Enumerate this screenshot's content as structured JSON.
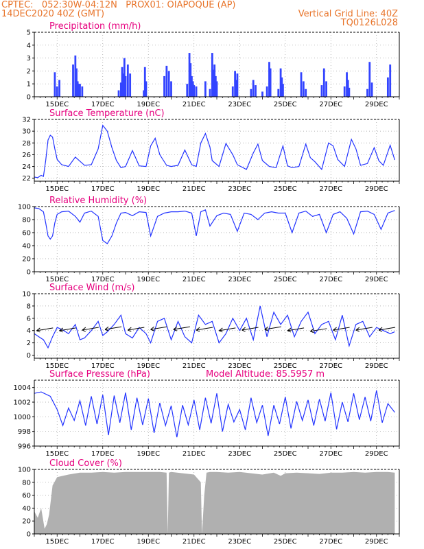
{
  "header": {
    "line1": "CPTEC:   052:30W-04:12N   PROX01: OIAPOQUE (AP)",
    "line2_left": "14DEC2020 40Z (GMT)",
    "line2_right": "Vertical Grid Line: 40Z",
    "line3_right": "TQ0126L028"
  },
  "colors": {
    "header": "#e8742a",
    "title": "#e6007e",
    "line": "#2233ff",
    "bar": "#3344ff",
    "cloud": "#b0b0b0"
  },
  "x_axis": {
    "day_labels": [
      "15DEC",
      "17DEC",
      "19DEC",
      "21DEC",
      "23DEC",
      "25DEC",
      "27DEC",
      "29DEC"
    ]
  },
  "chart_data": [
    {
      "type": "bar",
      "title": "Precipitation (mm/h)",
      "ylim": [
        0,
        5
      ],
      "yticks": [
        0,
        1,
        2,
        3,
        4,
        5
      ],
      "x_days": [
        0.9,
        1.0,
        1.1,
        1.7,
        1.8,
        1.85,
        1.9,
        1.95,
        2.0,
        2.1,
        3.7,
        3.8,
        3.85,
        3.9,
        3.95,
        4.0,
        4.1,
        4.2,
        4.8,
        4.85,
        4.9,
        5.7,
        5.8,
        5.9,
        6.0,
        6.7,
        6.8,
        6.85,
        6.9,
        6.95,
        7.0,
        7.1,
        7.5,
        7.7,
        7.8,
        7.85,
        7.9,
        7.95,
        8.0,
        8.7,
        8.8,
        8.85,
        8.9,
        9.5,
        9.6,
        9.7,
        10.0,
        10.2,
        10.3,
        10.35,
        10.7,
        10.8,
        10.85,
        10.9,
        11.7,
        11.8,
        11.9,
        12.6,
        12.7,
        12.8,
        13.6,
        13.7,
        13.75,
        13.8,
        14.6,
        14.7,
        14.8,
        15.5,
        15.6
      ],
      "values": [
        1.9,
        0.8,
        1.3,
        2.5,
        3.2,
        2.2,
        1.2,
        1.0,
        1.0,
        0.8,
        0.5,
        1.1,
        2.3,
        1.8,
        3.0,
        1.6,
        2.5,
        1.8,
        0.5,
        2.3,
        1.2,
        1.6,
        2.4,
        2.0,
        1.2,
        1.0,
        3.4,
        2.6,
        1.6,
        1.2,
        0.9,
        0.8,
        1.2,
        0.6,
        3.4,
        2.1,
        2.5,
        1.6,
        1.2,
        0.8,
        2.0,
        1.3,
        1.8,
        0.6,
        1.3,
        0.9,
        0.4,
        0.8,
        2.7,
        2.2,
        0.6,
        2.2,
        1.5,
        1.0,
        1.9,
        1.2,
        0.6,
        0.9,
        2.2,
        1.2,
        0.8,
        1.9,
        1.3,
        0.7,
        0.6,
        2.7,
        1.1,
        1.5,
        2.5
      ]
    },
    {
      "type": "line",
      "title": "Surface Temperature (nC)",
      "ylim": [
        21.5,
        32
      ],
      "yticks": [
        22,
        24,
        26,
        28,
        30,
        32
      ],
      "x_days": [
        0,
        0.15,
        0.3,
        0.4,
        0.5,
        0.6,
        0.7,
        0.8,
        0.9,
        1.0,
        1.2,
        1.5,
        1.8,
        2.2,
        2.5,
        2.8,
        3.0,
        3.2,
        3.4,
        3.6,
        3.8,
        4.0,
        4.3,
        4.6,
        4.9,
        5.1,
        5.3,
        5.5,
        5.8,
        6.0,
        6.3,
        6.6,
        6.9,
        7.1,
        7.3,
        7.5,
        7.7,
        7.8,
        8.1,
        8.4,
        8.7,
        8.9,
        9.3,
        9.6,
        9.8,
        10.0,
        10.3,
        10.6,
        10.9,
        11.1,
        11.3,
        11.6,
        11.9,
        12.1,
        12.3,
        12.6,
        12.9,
        13.1,
        13.3,
        13.6,
        13.9,
        14.1,
        14.3,
        14.6,
        14.9,
        15.1,
        15.3,
        15.6,
        15.8
      ],
      "values": [
        22.2,
        22.1,
        22.5,
        22.3,
        25.0,
        28.5,
        29.3,
        29.0,
        27.0,
        25.2,
        24.3,
        24.0,
        25.6,
        24.2,
        24.3,
        27.0,
        31.0,
        30.0,
        27.2,
        25.0,
        23.8,
        24.0,
        26.7,
        24.1,
        24.0,
        27.5,
        28.8,
        26.0,
        24.2,
        24.0,
        24.2,
        26.8,
        24.3,
        24.0,
        28.0,
        29.6,
        27.3,
        25.0,
        24.0,
        27.9,
        26.0,
        24.3,
        23.5,
        26.3,
        27.8,
        25.0,
        24.0,
        23.8,
        27.5,
        24.1,
        23.8,
        24.0,
        27.8,
        25.5,
        24.8,
        23.5,
        28.0,
        27.5,
        25.2,
        24.0,
        28.6,
        27.0,
        24.2,
        24.5,
        27.2,
        25.0,
        24.2,
        27.6,
        25.1
      ]
    },
    {
      "type": "line",
      "title": "Relative Humidity (%)",
      "ylim": [
        0,
        100
      ],
      "yticks": [
        0,
        20,
        40,
        60,
        80,
        100
      ],
      "x_days": [
        0,
        0.2,
        0.4,
        0.5,
        0.6,
        0.7,
        0.8,
        0.9,
        1.0,
        1.2,
        1.5,
        1.8,
        2.0,
        2.2,
        2.5,
        2.8,
        3.0,
        3.2,
        3.4,
        3.6,
        3.8,
        4.0,
        4.3,
        4.6,
        4.9,
        5.1,
        5.4,
        5.7,
        6.0,
        6.3,
        6.6,
        6.9,
        7.1,
        7.3,
        7.5,
        7.7,
        8.0,
        8.3,
        8.6,
        8.9,
        9.2,
        9.5,
        9.8,
        10.1,
        10.4,
        10.7,
        11.0,
        11.3,
        11.6,
        11.9,
        12.2,
        12.5,
        12.8,
        13.1,
        13.4,
        13.7,
        14.0,
        14.3,
        14.6,
        14.9,
        15.2,
        15.5,
        15.8
      ],
      "values": [
        98,
        97,
        92,
        75,
        55,
        50,
        55,
        75,
        88,
        92,
        93,
        85,
        76,
        90,
        93,
        85,
        48,
        43,
        55,
        75,
        90,
        91,
        86,
        92,
        91,
        55,
        85,
        90,
        92,
        92,
        93,
        90,
        55,
        92,
        95,
        70,
        86,
        90,
        88,
        62,
        90,
        88,
        80,
        90,
        92,
        90,
        90,
        60,
        90,
        93,
        85,
        88,
        60,
        88,
        92,
        82,
        58,
        92,
        93,
        88,
        65,
        90,
        94
      ]
    },
    {
      "type": "line",
      "title": "Surface Wind (m/s)",
      "ylim": [
        -0.5,
        10
      ],
      "yticks": [
        0,
        2,
        4,
        6,
        8,
        10
      ],
      "x_days": [
        0,
        0.2,
        0.4,
        0.6,
        0.8,
        1.0,
        1.2,
        1.5,
        1.8,
        2.0,
        2.2,
        2.5,
        2.8,
        3.0,
        3.2,
        3.5,
        3.8,
        4.0,
        4.3,
        4.6,
        4.9,
        5.1,
        5.4,
        5.7,
        6.0,
        6.3,
        6.6,
        6.9,
        7.2,
        7.5,
        7.8,
        8.1,
        8.4,
        8.7,
        9.0,
        9.3,
        9.6,
        9.9,
        10.2,
        10.5,
        10.8,
        11.1,
        11.4,
        11.7,
        12.0,
        12.3,
        12.6,
        12.9,
        13.2,
        13.5,
        13.8,
        14.1,
        14.4,
        14.7,
        15.0,
        15.3,
        15.6,
        15.8
      ],
      "values": [
        3.5,
        3.0,
        2.5,
        1.2,
        3.0,
        4.5,
        4.2,
        3.5,
        5.0,
        2.5,
        2.8,
        4.0,
        5.5,
        3.2,
        3.8,
        5.0,
        6.5,
        3.5,
        2.8,
        4.5,
        3.5,
        2.0,
        5.5,
        6.0,
        2.5,
        5.5,
        3.0,
        2.0,
        6.5,
        5.0,
        5.5,
        2.0,
        3.5,
        6.0,
        4.0,
        6.0,
        2.5,
        8.0,
        3.0,
        7.0,
        5.0,
        6.5,
        3.0,
        5.5,
        7.0,
        3.5,
        5.0,
        5.5,
        2.5,
        6.5,
        1.5,
        5.0,
        5.5,
        3.0,
        4.5,
        4.0,
        3.5,
        3.8
      ],
      "vectors": {
        "x_days": [
          0.1,
          1.1,
          2.1,
          3.1,
          4.1,
          5.1,
          6.1,
          7.1,
          8.1,
          9.1,
          10.1,
          11.1,
          12.1,
          13.1,
          14.1,
          15.1
        ],
        "y": [
          4.2,
          4.2,
          4.3,
          4.4,
          4.3,
          4.4,
          4.4,
          4.3,
          4.2,
          4.3,
          4.4,
          4.2,
          4.1,
          4.3,
          4.3,
          4.3
        ]
      }
    },
    {
      "type": "line",
      "title": "Surface Pressure (hPa)",
      "annotation": "Model Altitude: 85.5957 m",
      "ylim": [
        996,
        1005
      ],
      "yticks": [
        996,
        998,
        1000,
        1002,
        1004
      ],
      "x_days": [
        0,
        0.3,
        0.7,
        1.0,
        1.25,
        1.5,
        1.75,
        2.0,
        2.25,
        2.5,
        2.75,
        3.0,
        3.25,
        3.5,
        3.75,
        4.0,
        4.25,
        4.5,
        4.75,
        5.0,
        5.25,
        5.5,
        5.75,
        6.0,
        6.25,
        6.5,
        6.75,
        7.0,
        7.25,
        7.5,
        7.75,
        8.0,
        8.25,
        8.5,
        8.75,
        9.0,
        9.25,
        9.5,
        9.75,
        10.0,
        10.25,
        10.5,
        10.75,
        11.0,
        11.25,
        11.5,
        11.75,
        12.0,
        12.25,
        12.5,
        12.75,
        13.0,
        13.25,
        13.5,
        13.75,
        14.0,
        14.25,
        14.5,
        14.75,
        15.0,
        15.25,
        15.5,
        15.8
      ],
      "values": [
        1003.2,
        1003.4,
        1002.8,
        1001.0,
        998.8,
        1001.2,
        999.5,
        1002.2,
        998.8,
        1002.8,
        999.0,
        1003.0,
        997.5,
        1002.9,
        999.2,
        1003.3,
        998.2,
        1002.6,
        998.9,
        1002.5,
        997.8,
        1001.9,
        998.8,
        1001.5,
        997.2,
        1001.6,
        998.9,
        1002.3,
        998.2,
        1002.6,
        999.1,
        1003.2,
        998.0,
        1001.7,
        999.3,
        1001.0,
        998.2,
        1002.6,
        999.2,
        1001.6,
        997.4,
        1001.6,
        999.0,
        1002.7,
        998.4,
        1002.1,
        999.5,
        1002.3,
        998.8,
        1002.4,
        999.4,
        1003.3,
        998.3,
        1002.0,
        999.3,
        1003.2,
        999.6,
        1002.7,
        999.4,
        1003.6,
        999.2,
        1001.8,
        1000.6
      ]
    },
    {
      "type": "area",
      "title": "Cloud Cover (%)",
      "ylim": [
        0,
        100
      ],
      "yticks": [
        0,
        20,
        40,
        60,
        80,
        100
      ],
      "x_days": [
        0,
        0.15,
        0.3,
        0.45,
        0.55,
        0.65,
        0.8,
        1.0,
        1.5,
        2.0,
        2.5,
        3.0,
        3.5,
        4.0,
        4.5,
        5.0,
        5.5,
        5.8,
        5.85,
        5.9,
        6.0,
        6.5,
        7.0,
        7.3,
        7.35,
        7.45,
        7.55,
        7.7,
        8.0,
        8.5,
        9.0,
        9.5,
        10.0,
        10.5,
        10.8,
        11.0,
        11.5,
        12.0,
        12.5,
        13.0,
        13.5,
        14.0,
        14.5,
        15.0,
        15.5,
        15.8
      ],
      "values": [
        35,
        25,
        40,
        8,
        15,
        30,
        75,
        88,
        92,
        95,
        95,
        96,
        95,
        96,
        96,
        96,
        96,
        95,
        0,
        95,
        96,
        94,
        92,
        80,
        0,
        60,
        95,
        96,
        96,
        95,
        96,
        94,
        92,
        95,
        90,
        94,
        95,
        94,
        93,
        95,
        95,
        96,
        95,
        96,
        96,
        95
      ]
    }
  ]
}
